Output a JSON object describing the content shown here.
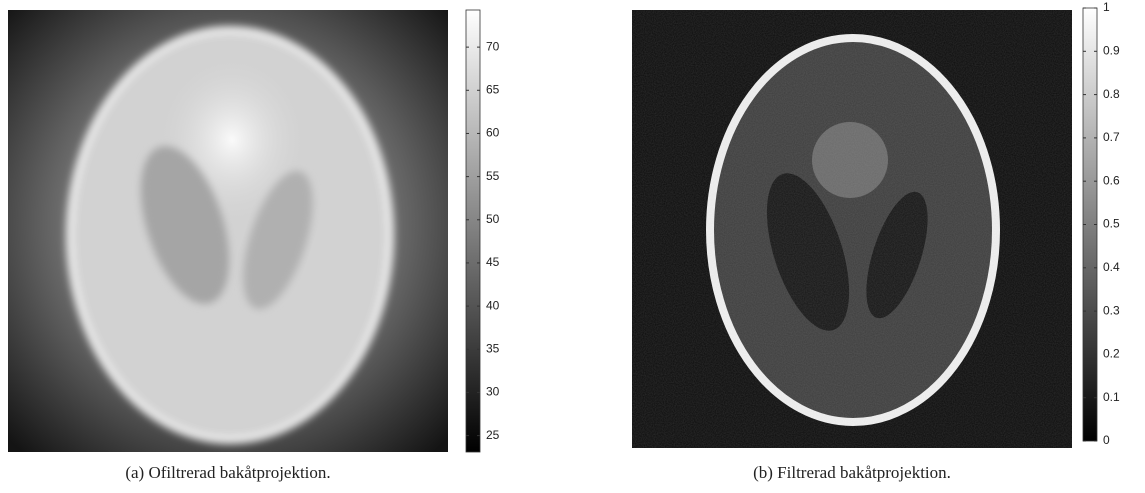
{
  "chart_data": [
    {
      "type": "image",
      "caption": "(a) Ofiltrerad bakåtprojektion.",
      "clim": [
        23.1,
        74.3
      ],
      "cticks": [
        25,
        30,
        35,
        40,
        45,
        50,
        55,
        60,
        65,
        70
      ]
    },
    {
      "type": "image",
      "caption": "(b) Filtrerad bakåtprojektion.",
      "clim": [
        0,
        1
      ],
      "cticks": [
        0,
        0.1,
        0.2,
        0.3,
        0.4,
        0.5,
        0.6,
        0.7,
        0.8,
        0.9,
        1
      ]
    }
  ]
}
